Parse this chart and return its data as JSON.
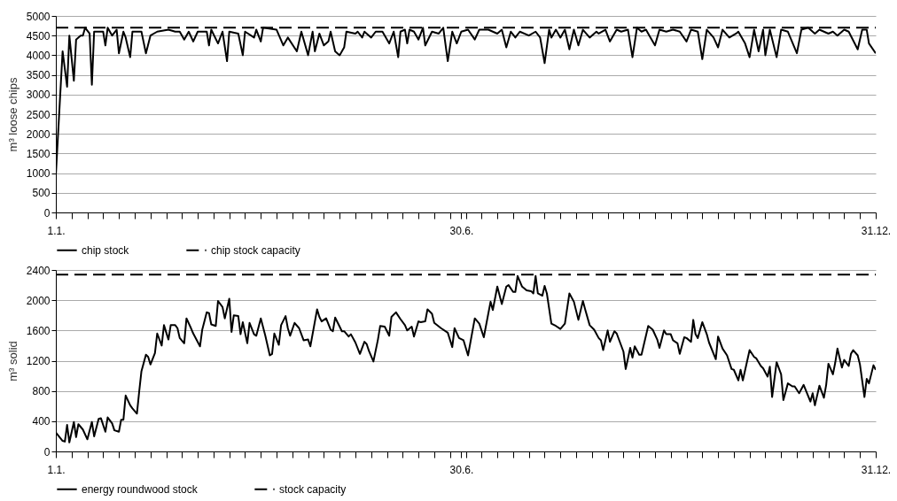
{
  "chart_data": [
    {
      "type": "line",
      "ylabel": "m³ loose chips",
      "xlim": [
        "--01-01",
        "--12-31"
      ],
      "xticks": [
        {
          "value": "--01-01",
          "label": "1.1."
        },
        {
          "value": "--01-08",
          "label": null
        },
        {
          "value": "--01-15",
          "label": null
        },
        {
          "value": "--01-22",
          "label": null
        },
        {
          "value": "--01-29",
          "label": null
        },
        {
          "value": "--02-05",
          "label": null
        },
        {
          "value": "--02-12",
          "label": null
        },
        {
          "value": "--02-19",
          "label": null
        },
        {
          "value": "--02-26",
          "label": null
        },
        {
          "value": "--03-05",
          "label": null
        },
        {
          "value": "--03-12",
          "label": null
        },
        {
          "value": "--03-19",
          "label": null
        },
        {
          "value": "--03-26",
          "label": null
        },
        {
          "value": "--04-02",
          "label": null
        },
        {
          "value": "--04-09",
          "label": null
        },
        {
          "value": "--04-16",
          "label": null
        },
        {
          "value": "--04-23",
          "label": null
        },
        {
          "value": "--04-30",
          "label": null
        },
        {
          "value": "--05-07",
          "label": null
        },
        {
          "value": "--05-14",
          "label": null
        },
        {
          "value": "--05-21",
          "label": null
        },
        {
          "value": "--05-28",
          "label": null
        },
        {
          "value": "--06-04",
          "label": null
        },
        {
          "value": "--06-11",
          "label": null
        },
        {
          "value": "--06-18",
          "label": null
        },
        {
          "value": "--06-25",
          "label": null
        },
        {
          "value": "--06-30",
          "label": "30.6."
        },
        {
          "value": "--07-02",
          "label": null
        },
        {
          "value": "--07-09",
          "label": null
        },
        {
          "value": "--07-16",
          "label": null
        },
        {
          "value": "--07-23",
          "label": null
        },
        {
          "value": "--07-30",
          "label": null
        },
        {
          "value": "--08-06",
          "label": null
        },
        {
          "value": "--08-13",
          "label": null
        },
        {
          "value": "--08-20",
          "label": null
        },
        {
          "value": "--08-27",
          "label": null
        },
        {
          "value": "--09-03",
          "label": null
        },
        {
          "value": "--09-10",
          "label": null
        },
        {
          "value": "--09-17",
          "label": null
        },
        {
          "value": "--09-24",
          "label": null
        },
        {
          "value": "--10-01",
          "label": null
        },
        {
          "value": "--10-08",
          "label": null
        },
        {
          "value": "--10-15",
          "label": null
        },
        {
          "value": "--10-22",
          "label": null
        },
        {
          "value": "--10-29",
          "label": null
        },
        {
          "value": "--11-05",
          "label": null
        },
        {
          "value": "--11-12",
          "label": null
        },
        {
          "value": "--11-19",
          "label": null
        },
        {
          "value": "--11-26",
          "label": null
        },
        {
          "value": "--12-03",
          "label": null
        },
        {
          "value": "--12-10",
          "label": null
        },
        {
          "value": "--12-17",
          "label": null
        },
        {
          "value": "--12-24",
          "label": null
        },
        {
          "value": "--12-31",
          "label": "31.12."
        }
      ],
      "ylim": [
        0,
        5000
      ],
      "yticks": [
        0,
        500,
        1000,
        1500,
        2000,
        2500,
        3000,
        3500,
        4000,
        4500,
        5000
      ],
      "grid": "y",
      "legend": "bottom",
      "marker": "none",
      "series": [
        {
          "name": "chip stock",
          "color": "#000000",
          "line_style": "solid",
          "x": [
            "--01-01",
            "--01-04",
            "--01-06",
            "--01-07",
            "--01-09",
            "--01-10",
            "--01-12",
            "--01-13",
            "--01-14",
            "--01-16",
            "--01-17",
            "--01-18",
            "--01-22",
            "--01-23",
            "--01-24",
            "--01-26",
            "--01-28",
            "--01-29",
            "--01-31",
            "--02-01",
            "--02-03",
            "--02-04",
            "--02-08",
            "--02-10",
            "--02-12",
            "--02-15",
            "--02-20",
            "--02-23",
            "--02-25",
            "--02-27",
            "--03-01",
            "--03-03",
            "--03-05",
            "--03-09",
            "--03-10",
            "--03-11",
            "--03-14",
            "--03-16",
            "--03-18",
            "--03-19",
            "--03-23",
            "--03-25",
            "--03-26",
            "--03-30",
            "--03-31",
            "--04-02",
            "--04-03",
            "--04-09",
            "--04-12",
            "--04-14",
            "--04-18",
            "--04-20",
            "--04-23",
            "--04-25",
            "--04-26",
            "--04-28",
            "--04-30",
            "--05-02",
            "--05-03",
            "--05-05",
            "--05-07",
            "--05-09",
            "--05-10",
            "--05-14",
            "--05-15",
            "--05-17",
            "--05-18",
            "--05-21",
            "--05-23",
            "--05-26",
            "--05-29",
            "--05-31",
            "--06-02",
            "--06-03",
            "--06-05",
            "--06-06",
            "--06-07",
            "--06-09",
            "--06-11",
            "--06-13",
            "--06-14",
            "--06-17",
            "--06-20",
            "--06-22",
            "--06-24",
            "--06-26",
            "--06-28",
            "--06-30",
            "--07-03",
            "--07-06",
            "--07-08",
            "--07-12",
            "--07-16",
            "--07-18",
            "--07-20",
            "--07-22",
            "--07-24",
            "--07-26",
            "--07-30",
            "--08-02",
            "--08-04",
            "--08-06",
            "--08-08",
            "--08-09",
            "--08-11",
            "--08-13",
            "--08-15",
            "--08-17",
            "--08-19",
            "--08-21",
            "--08-23",
            "--08-26",
            "--08-29",
            "--08-30",
            "--09-02",
            "--09-04",
            "--09-07",
            "--09-09",
            "--09-12",
            "--09-14",
            "--09-16",
            "--09-18",
            "--09-20",
            "--09-22",
            "--09-24",
            "--09-26",
            "--09-29",
            "--10-02",
            "--10-05",
            "--10-08",
            "--10-10",
            "--10-13",
            "--10-15",
            "--10-17",
            "--10-20",
            "--10-22",
            "--10-24",
            "--10-27",
            "--10-30",
            "--10-31",
            "--11-03",
            "--11-05",
            "--11-07",
            "--11-09",
            "--11-11",
            "--11-12",
            "--11-14",
            "--11-17",
            "--11-19",
            "--11-22",
            "--11-26",
            "--11-28",
            "--12-01",
            "--12-04",
            "--12-06",
            "--12-10",
            "--12-12",
            "--12-14",
            "--12-17",
            "--12-19",
            "--12-23",
            "--12-25",
            "--12-27",
            "--12-28",
            "--12-31"
          ],
          "values": [
            950,
            4100,
            3200,
            4500,
            3350,
            4400,
            4500,
            4500,
            4700,
            4550,
            3250,
            4600,
            4600,
            4250,
            4700,
            4500,
            4650,
            4050,
            4600,
            4450,
            3950,
            4600,
            4600,
            4050,
            4500,
            4600,
            4650,
            4600,
            4600,
            4400,
            4600,
            4350,
            4600,
            4600,
            4250,
            4650,
            4300,
            4600,
            3850,
            4600,
            4550,
            4000,
            4600,
            4450,
            4650,
            4350,
            4700,
            4650,
            4250,
            4450,
            4100,
            4600,
            4000,
            4600,
            4100,
            4550,
            4250,
            4350,
            4600,
            4100,
            4000,
            4200,
            4600,
            4550,
            4600,
            4450,
            4600,
            4450,
            4600,
            4600,
            4300,
            4600,
            3950,
            4600,
            4650,
            4300,
            4650,
            4600,
            4400,
            4700,
            4250,
            4600,
            4550,
            4700,
            3850,
            4600,
            4300,
            4600,
            4650,
            4400,
            4650,
            4650,
            4550,
            4650,
            4200,
            4600,
            4450,
            4600,
            4500,
            4600,
            4450,
            3800,
            4650,
            4450,
            4650,
            4450,
            4650,
            4150,
            4650,
            4250,
            4650,
            4450,
            4600,
            4550,
            4650,
            4350,
            4650,
            4600,
            4650,
            3950,
            4700,
            4600,
            4650,
            4450,
            4250,
            4650,
            4600,
            4650,
            4600,
            4350,
            4650,
            4600,
            3900,
            4650,
            4450,
            4200,
            4650,
            4450,
            4550,
            4600,
            4300,
            3950,
            4650,
            4100,
            4650,
            4000,
            4650,
            3950,
            4650,
            4600,
            4050,
            4650,
            4700,
            4550,
            4650,
            4550,
            4600,
            4500,
            4650,
            4600,
            4150,
            4650,
            4650,
            4300,
            4050
          ]
        },
        {
          "name": "chip stock capacity",
          "color": "#000000",
          "line_style": "dashed",
          "x": [
            "--01-01",
            "--12-31"
          ],
          "values": [
            4700,
            4700
          ]
        }
      ]
    },
    {
      "type": "line",
      "ylabel": "m³ solid",
      "xlim": [
        "--01-01",
        "--12-31"
      ],
      "xticks": [
        {
          "value": "--01-01",
          "label": "1.1."
        },
        {
          "value": "--01-08",
          "label": null
        },
        {
          "value": "--01-15",
          "label": null
        },
        {
          "value": "--01-22",
          "label": null
        },
        {
          "value": "--01-29",
          "label": null
        },
        {
          "value": "--02-05",
          "label": null
        },
        {
          "value": "--02-12",
          "label": null
        },
        {
          "value": "--02-19",
          "label": null
        },
        {
          "value": "--02-26",
          "label": null
        },
        {
          "value": "--03-05",
          "label": null
        },
        {
          "value": "--03-12",
          "label": null
        },
        {
          "value": "--03-19",
          "label": null
        },
        {
          "value": "--03-26",
          "label": null
        },
        {
          "value": "--04-02",
          "label": null
        },
        {
          "value": "--04-09",
          "label": null
        },
        {
          "value": "--04-16",
          "label": null
        },
        {
          "value": "--04-23",
          "label": null
        },
        {
          "value": "--04-30",
          "label": null
        },
        {
          "value": "--05-07",
          "label": null
        },
        {
          "value": "--05-14",
          "label": null
        },
        {
          "value": "--05-21",
          "label": null
        },
        {
          "value": "--05-28",
          "label": null
        },
        {
          "value": "--06-04",
          "label": null
        },
        {
          "value": "--06-11",
          "label": null
        },
        {
          "value": "--06-18",
          "label": null
        },
        {
          "value": "--06-25",
          "label": null
        },
        {
          "value": "--06-30",
          "label": "30.6."
        },
        {
          "value": "--07-02",
          "label": null
        },
        {
          "value": "--07-09",
          "label": null
        },
        {
          "value": "--07-16",
          "label": null
        },
        {
          "value": "--07-23",
          "label": null
        },
        {
          "value": "--07-30",
          "label": null
        },
        {
          "value": "--08-06",
          "label": null
        },
        {
          "value": "--08-13",
          "label": null
        },
        {
          "value": "--08-20",
          "label": null
        },
        {
          "value": "--08-27",
          "label": null
        },
        {
          "value": "--09-03",
          "label": null
        },
        {
          "value": "--09-10",
          "label": null
        },
        {
          "value": "--09-17",
          "label": null
        },
        {
          "value": "--09-24",
          "label": null
        },
        {
          "value": "--10-01",
          "label": null
        },
        {
          "value": "--10-08",
          "label": null
        },
        {
          "value": "--10-15",
          "label": null
        },
        {
          "value": "--10-22",
          "label": null
        },
        {
          "value": "--10-29",
          "label": null
        },
        {
          "value": "--11-05",
          "label": null
        },
        {
          "value": "--11-12",
          "label": null
        },
        {
          "value": "--11-19",
          "label": null
        },
        {
          "value": "--11-26",
          "label": null
        },
        {
          "value": "--12-03",
          "label": null
        },
        {
          "value": "--12-10",
          "label": null
        },
        {
          "value": "--12-17",
          "label": null
        },
        {
          "value": "--12-24",
          "label": null
        },
        {
          "value": "--12-31",
          "label": "31.12."
        }
      ],
      "ylim": [
        0,
        2400
      ],
      "yticks": [
        0,
        400,
        800,
        1200,
        1600,
        2000,
        2400
      ],
      "grid": "y",
      "legend": "bottom",
      "marker": "none",
      "series": [
        {
          "name": "energy roundwood stock",
          "color": "#000000",
          "line_style": "solid",
          "x": [
            "--01-01",
            "--01-04",
            "--01-05",
            "--01-06",
            "--01-07",
            "--01-09",
            "--01-10",
            "--01-11",
            "--01-13",
            "--01-15",
            "--01-17",
            "--01-18",
            "--01-20",
            "--01-21",
            "--01-23",
            "--01-24",
            "--01-26",
            "--01-27",
            "--01-29",
            "--01-30",
            "--01-31",
            "--02-01",
            "--02-03",
            "--02-04",
            "--02-06",
            "--02-07",
            "--02-08",
            "--02-10",
            "--02-11",
            "--02-12",
            "--02-14",
            "--02-15",
            "--02-17",
            "--02-18",
            "--02-20",
            "--02-21",
            "--02-23",
            "--02-24",
            "--02-25",
            "--02-27",
            "--02-28",
            "--03-02",
            "--03-03",
            "--03-06",
            "--03-07",
            "--03-09",
            "--03-10",
            "--03-11",
            "--03-13",
            "--03-14",
            "--03-16",
            "--03-17",
            "--03-19",
            "--03-20",
            "--03-21",
            "--03-23",
            "--03-24",
            "--03-25",
            "--03-27",
            "--03-28",
            "--03-30",
            "--03-31",
            "--04-02",
            "--04-04",
            "--04-06",
            "--04-07",
            "--04-08",
            "--04-10",
            "--04-11",
            "--04-13",
            "--04-14",
            "--04-15",
            "--04-17",
            "--04-19",
            "--04-21",
            "--04-23",
            "--04-24",
            "--04-27",
            "--04-28",
            "--04-29",
            "--05-01",
            "--05-03",
            "--05-04",
            "--05-05",
            "--05-07",
            "--05-08",
            "--05-09",
            "--05-11",
            "--05-12",
            "--05-14",
            "--05-16",
            "--05-18",
            "--05-19",
            "--05-20",
            "--05-22",
            "--05-24",
            "--05-25",
            "--05-27",
            "--05-29",
            "--05-30",
            "--06-01",
            "--06-03",
            "--06-05",
            "--06-06",
            "--06-08",
            "--06-09",
            "--06-11",
            "--06-12",
            "--06-14",
            "--06-15",
            "--06-17",
            "--06-18",
            "--06-21",
            "--06-24",
            "--06-26",
            "--06-27",
            "--06-29",
            "--07-01",
            "--07-03",
            "--07-06",
            "--07-08",
            "--07-10",
            "--07-13",
            "--07-14",
            "--07-16",
            "--07-18",
            "--07-20",
            "--07-21",
            "--07-23",
            "--07-24",
            "--07-25",
            "--07-27",
            "--07-29",
            "--07-31",
            "--08-01",
            "--08-02",
            "--08-03",
            "--08-05",
            "--08-06",
            "--08-07",
            "--08-09",
            "--08-11",
            "--08-13",
            "--08-15",
            "--08-17",
            "--08-19",
            "--08-21",
            "--08-23",
            "--08-24",
            "--08-26",
            "--08-28",
            "--08-30",
            "--08-31",
            "--09-01",
            "--09-03",
            "--09-04",
            "--09-06",
            "--09-07",
            "--09-10",
            "--09-11",
            "--09-13",
            "--09-14",
            "--09-15",
            "--09-17",
            "--09-18",
            "--09-21",
            "--09-23",
            "--09-25",
            "--09-26",
            "--09-28",
            "--09-29",
            "--10-01",
            "--10-02",
            "--10-04",
            "--10-05",
            "--10-07",
            "--10-08",
            "--10-10",
            "--10-11",
            "--10-12",
            "--10-13",
            "--10-15",
            "--10-17",
            "--10-18",
            "--10-21",
            "--10-22",
            "--10-24",
            "--10-26",
            "--10-28",
            "--10-29",
            "--10-31",
            "--11-01",
            "--11-02",
            "--11-05",
            "--11-07",
            "--11-08",
            "--11-10",
            "--11-11",
            "--11-13",
            "--11-14",
            "--11-15",
            "--11-17",
            "--11-19",
            "--11-20",
            "--11-22",
            "--11-24",
            "--11-25",
            "--11-27",
            "--11-29",
            "--12-02",
            "--12-03",
            "--12-04",
            "--12-06",
            "--12-08",
            "--12-09",
            "--12-10",
            "--12-12",
            "--12-13",
            "--12-14",
            "--12-16",
            "--12-17",
            "--12-19",
            "--12-20",
            "--12-21",
            "--12-23",
            "--12-24",
            "--12-26",
            "--12-27",
            "--12-28",
            "--12-30",
            "--12-31"
          ],
          "values": [
            250,
            140,
            130,
            350,
            120,
            390,
            190,
            360,
            290,
            160,
            390,
            200,
            430,
            440,
            260,
            450,
            370,
            280,
            260,
            420,
            420,
            740,
            610,
            570,
            500,
            790,
            1060,
            1280,
            1250,
            1150,
            1300,
            1560,
            1400,
            1670,
            1480,
            1670,
            1670,
            1630,
            1500,
            1430,
            1760,
            1630,
            1560,
            1390,
            1610,
            1840,
            1830,
            1680,
            1660,
            1990,
            1910,
            1760,
            2020,
            1580,
            1800,
            1790,
            1550,
            1710,
            1430,
            1700,
            1550,
            1530,
            1760,
            1530,
            1270,
            1290,
            1560,
            1410,
            1670,
            1790,
            1630,
            1530,
            1700,
            1630,
            1470,
            1480,
            1390,
            1880,
            1780,
            1720,
            1760,
            1610,
            1590,
            1770,
            1650,
            1590,
            1590,
            1520,
            1550,
            1440,
            1290,
            1450,
            1420,
            1330,
            1190,
            1480,
            1660,
            1650,
            1530,
            1780,
            1840,
            1750,
            1670,
            1600,
            1650,
            1520,
            1720,
            1710,
            1720,
            1880,
            1820,
            1700,
            1630,
            1570,
            1380,
            1630,
            1500,
            1470,
            1270,
            1760,
            1690,
            1510,
            1980,
            1870,
            2180,
            1950,
            2180,
            2200,
            2110,
            2110,
            2320,
            2180,
            2130,
            2120,
            2090,
            2320,
            2090,
            2060,
            2190,
            2090,
            1690,
            1660,
            1620,
            1690,
            2090,
            1980,
            1740,
            1990,
            1880,
            1670,
            1610,
            1500,
            1470,
            1340,
            1600,
            1450,
            1590,
            1560,
            1320,
            1090,
            1370,
            1240,
            1390,
            1280,
            1280,
            1660,
            1610,
            1480,
            1370,
            1600,
            1550,
            1550,
            1470,
            1430,
            1290,
            1510,
            1500,
            1450,
            1740,
            1550,
            1500,
            1710,
            1550,
            1440,
            1220,
            1520,
            1360,
            1270,
            1090,
            1080,
            940,
            1080,
            940,
            1340,
            1250,
            1230,
            1130,
            1100,
            990,
            1120,
            720,
            1180,
            1020,
            680,
            900,
            860,
            860,
            770,
            880,
            660,
            770,
            610,
            870,
            710,
            880,
            1160,
            1020,
            1170,
            1360,
            1110,
            1210,
            1130,
            1290,
            1340,
            1270,
            1150,
            720,
            960,
            900,
            1140,
            1080
          ]
        },
        {
          "name": "stock capacity",
          "color": "#000000",
          "line_style": "dashed",
          "x": [
            "--01-01",
            "--12-31"
          ],
          "values": [
            2340,
            2340
          ]
        }
      ]
    }
  ]
}
